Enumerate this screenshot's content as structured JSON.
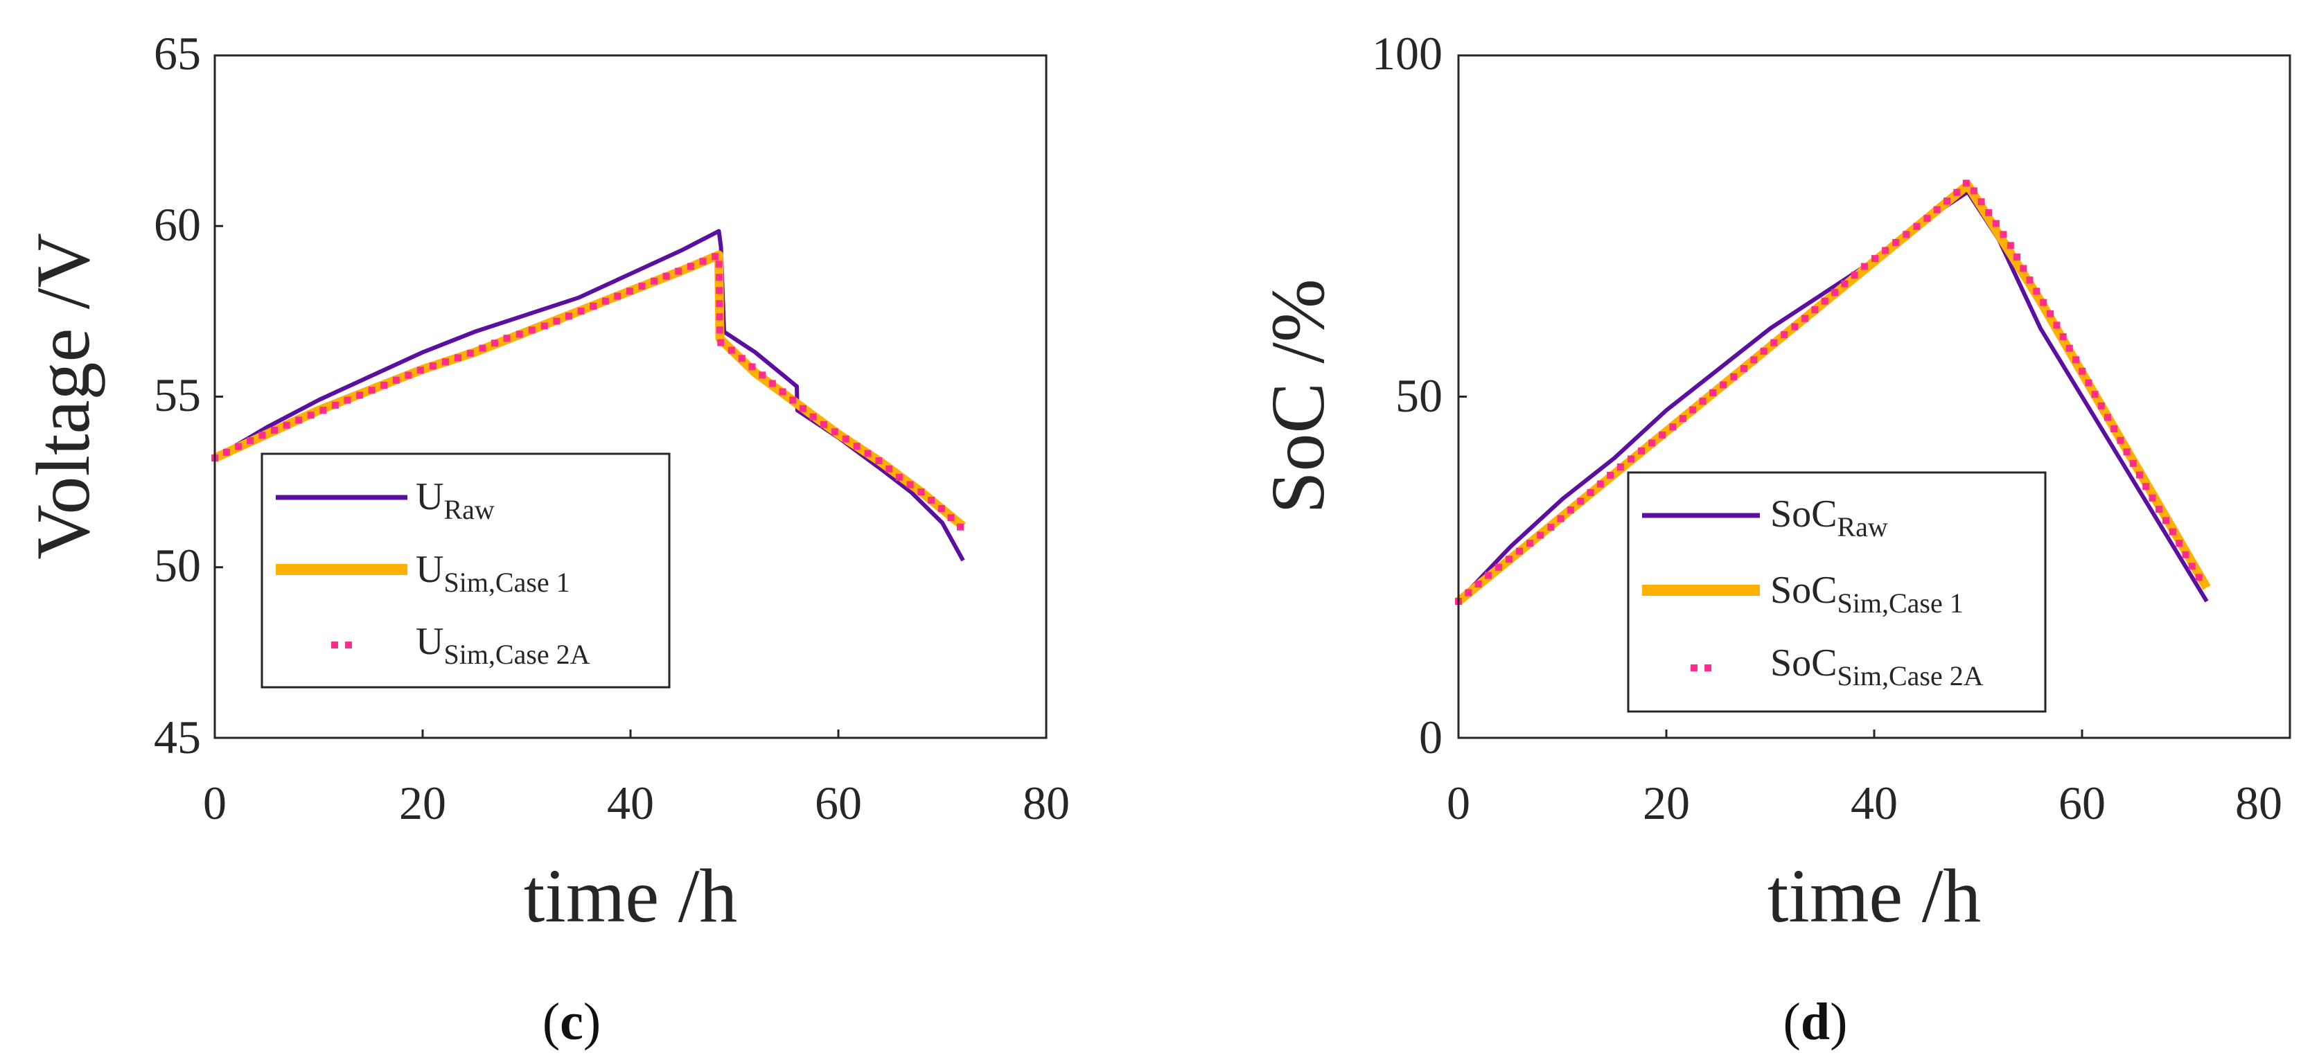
{
  "chart_data": [
    {
      "type": "line",
      "panel_label": {
        "open": "(",
        "letter": "c",
        "close": ")"
      },
      "xlabel": "time /h",
      "ylabel": "Voltage /V",
      "xlim": [
        0,
        80
      ],
      "ylim": [
        45,
        65
      ],
      "xticks": [
        0,
        20,
        40,
        60,
        80
      ],
      "yticks": [
        45,
        50,
        55,
        60,
        65
      ],
      "legend": {
        "position": "bottom-left",
        "entries": [
          {
            "base": "U",
            "sub": "Raw",
            "style": "line-purple"
          },
          {
            "base": "U",
            "sub": "Sim,Case 1",
            "style": "line-orange"
          },
          {
            "base": "U",
            "sub": "Sim,Case 2A",
            "style": "dots-pink"
          }
        ]
      },
      "series": [
        {
          "name": "U_Raw",
          "color": "#5a0fa0",
          "x": [
            0,
            5,
            10,
            15,
            20,
            25,
            30,
            35,
            40,
            45,
            48.5,
            48.7,
            49,
            52,
            56,
            56.05,
            60,
            64,
            67,
            70,
            72
          ],
          "y": [
            53.2,
            54.1,
            54.9,
            55.6,
            56.3,
            56.9,
            57.4,
            57.9,
            58.6,
            59.3,
            59.85,
            59.4,
            56.9,
            56.3,
            55.3,
            54.6,
            53.8,
            52.9,
            52.2,
            51.3,
            50.2
          ]
        },
        {
          "name": "U_Sim,Case 1",
          "color": "#ffb000",
          "x": [
            0,
            5,
            10,
            15,
            20,
            25,
            30,
            35,
            40,
            45,
            48.5,
            48.6,
            52,
            56,
            60,
            64,
            68,
            72
          ],
          "y": [
            53.2,
            53.9,
            54.6,
            55.2,
            55.8,
            56.3,
            56.9,
            57.5,
            58.1,
            58.7,
            59.15,
            56.7,
            55.7,
            54.8,
            53.9,
            53.1,
            52.2,
            51.2
          ]
        },
        {
          "name": "U_Sim,Case 2A",
          "color": "#ff2d8c",
          "x": [
            0,
            4,
            8,
            12,
            16,
            20,
            24,
            28,
            32,
            36,
            40,
            44,
            48.5,
            48.6,
            50,
            52,
            54,
            56,
            58,
            60,
            62,
            64,
            66,
            68,
            70,
            72
          ],
          "y": [
            53.2,
            53.8,
            54.3,
            54.8,
            55.3,
            55.8,
            56.2,
            56.7,
            57.1,
            57.6,
            58.1,
            58.6,
            59.15,
            56.6,
            56.3,
            55.8,
            55.3,
            54.8,
            54.3,
            53.9,
            53.5,
            53.1,
            52.6,
            52.2,
            51.7,
            51.1
          ]
        }
      ]
    },
    {
      "type": "line",
      "panel_label": {
        "open": "(",
        "letter": "d",
        "close": ")"
      },
      "xlabel": "time /h",
      "ylabel": "SoC /%",
      "xlim": [
        0,
        80
      ],
      "ylim": [
        0,
        100
      ],
      "xticks": [
        0,
        20,
        40,
        60,
        80
      ],
      "yticks": [
        0,
        50,
        100
      ],
      "legend": {
        "position": "bottom-left",
        "entries": [
          {
            "base": "SoC",
            "sub": "Raw",
            "style": "line-purple"
          },
          {
            "base": "SoC",
            "sub": "Sim,Case 1",
            "style": "line-orange"
          },
          {
            "base": "SoC",
            "sub": "Sim,Case 2A",
            "style": "dots-pink"
          }
        ]
      },
      "series": [
        {
          "name": "SoC_Raw",
          "color": "#5a0fa0",
          "x": [
            0,
            5,
            10,
            15,
            20,
            25,
            30,
            35,
            40,
            45,
            49,
            52,
            56,
            60,
            64,
            68,
            72
          ],
          "y": [
            20,
            28,
            35,
            41,
            48,
            54,
            60,
            65,
            70,
            76,
            80,
            73,
            60,
            50,
            40,
            30,
            20
          ]
        },
        {
          "name": "SoC_Sim,Case 1",
          "color": "#ffb000",
          "x": [
            0,
            49,
            56,
            72
          ],
          "y": [
            20,
            81,
            64,
            22
          ]
        },
        {
          "name": "SoC_Sim,Case 2A",
          "color": "#ff2d8c",
          "x": [
            0,
            3,
            6,
            9,
            12,
            15,
            18,
            21,
            24,
            27,
            30,
            33,
            36,
            39,
            42,
            45,
            48,
            49,
            51,
            53,
            55,
            57,
            59,
            61,
            63,
            65,
            67,
            69,
            71,
            72
          ],
          "y": [
            20,
            24,
            27.5,
            31,
            35,
            39,
            42.5,
            46,
            50,
            53.5,
            57.5,
            61,
            65,
            69,
            72.5,
            76,
            80,
            81.5,
            77,
            72.5,
            67,
            62,
            56.5,
            51,
            45.5,
            40,
            34.5,
            29.5,
            24,
            22
          ]
        }
      ]
    }
  ]
}
